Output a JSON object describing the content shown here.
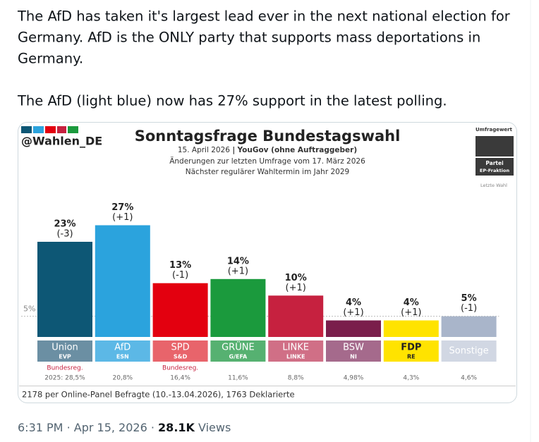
{
  "tweet": {
    "lines": [
      "The AfD has taken it's largest lead ever in the next national election for",
      "Germany. AfD is the ONLY party that supports mass deportations in",
      "Germany.",
      "The AfD (light blue) now has 27% support in the latest polling."
    ]
  },
  "chart_data": {
    "type": "bar",
    "handle": "@Wahlen_DE",
    "title": "Sonntagsfrage Bundestagswahl",
    "date": "15. April 2026",
    "divider": "|",
    "source": "YouGov (ohne Auftraggeber)",
    "subtitle_lines": [
      "Änderungen zur letzten Umfrage vom 17. März 2026",
      "Nächster regulärer Wahltermin im Jahr 2029"
    ],
    "legend": {
      "poll": "Umfragewert",
      "party": "Partei",
      "group": "EP-Fraktion",
      "last": "Letzte Wahl"
    },
    "categories": [
      "Union",
      "AfD",
      "SPD",
      "GRÜNE",
      "LINKE",
      "BSW",
      "FDP",
      "Sonstige"
    ],
    "groups": [
      "EVP",
      "ESN",
      "S&D",
      "G/EFA",
      "LINKE",
      "NI",
      "RE",
      null
    ],
    "values": [
      23,
      27,
      13,
      14,
      10,
      4,
      4,
      5
    ],
    "value_labels": [
      "23%",
      "27%",
      "13%",
      "14%",
      "10%",
      "4%",
      "4%",
      "5%"
    ],
    "changes": [
      -3,
      1,
      -1,
      1,
      1,
      1,
      1,
      -1
    ],
    "change_labels": [
      "(-3)",
      "(+1)",
      "(-1)",
      "(+1)",
      "(+1)",
      "(+1)",
      "(+1)",
      "(-1)"
    ],
    "government_labels": [
      "Bundesreg.",
      null,
      "Bundesreg.",
      null,
      null,
      null,
      null,
      null
    ],
    "last_election": [
      28.5,
      20.8,
      16.4,
      11.6,
      8.8,
      4.98,
      4.3,
      4.6
    ],
    "last_election_labels": [
      "2025: 28,5%",
      "20,8%",
      "16,4%",
      "11,6%",
      "8,8%",
      "4,98%",
      "4,3%",
      "4,6%"
    ],
    "colors": [
      "#0d5775",
      "#2ba3dd",
      "#e3000f",
      "#1b9a3d",
      "#c6213f",
      "#7a1e4b",
      "#ffe300",
      "#a9b5ca"
    ],
    "label_colors": [
      "#6b8fa3",
      "#5cb8e6",
      "#e8646b",
      "#56b171",
      "#d06f86",
      "#a56a8c",
      "#ffe300",
      "#d1d7e3"
    ],
    "label_text_colors": [
      "#ffffff",
      "#ffffff",
      "#ffffff",
      "#ffffff",
      "#ffffff",
      "#ffffff",
      "#222222",
      "#ffffff"
    ],
    "threshold": 5,
    "threshold_label": "5%",
    "note": "2178 per Online-Panel Befragte (10.-13.04.2026), 1763 Deklarierte"
  },
  "meta": {
    "time": "6:31 PM",
    "separator": "·",
    "date": "Apr 15, 2026",
    "views": "28.1K",
    "views_label": "Views"
  }
}
